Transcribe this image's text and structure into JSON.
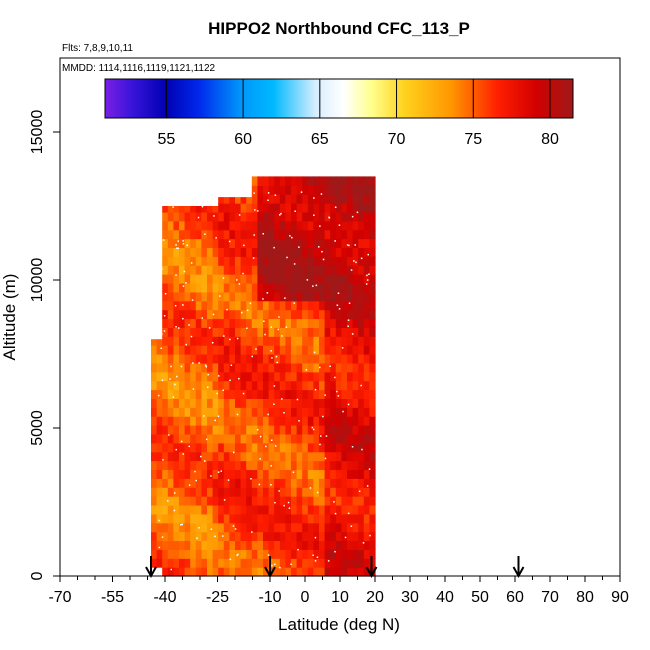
{
  "chart_data": {
    "type": "heatmap",
    "title": "HIPPO2 Northbound CFC_113_P",
    "flights_note": "Flts: 7,8,9,10,11",
    "dates_note": "MMDD: 1114,1116,1119,1121,1122",
    "xlabel": "Latitude (deg N)",
    "ylabel": "Altitude (m)",
    "xlim": [
      -70,
      90
    ],
    "ylim": [
      0,
      17500
    ],
    "x_ticks": [
      -70,
      -55,
      -40,
      -25,
      -10,
      0,
      10,
      20,
      30,
      40,
      50,
      60,
      70,
      80,
      90
    ],
    "y_ticks": [
      0,
      5000,
      10000,
      15000
    ],
    "colorbar": {
      "min": 51,
      "max": 81.5,
      "ticks": [
        55,
        60,
        65,
        70,
        75,
        80
      ],
      "placement": "top-inside"
    },
    "flight_markers_lat": [
      -44,
      -10,
      19,
      61
    ],
    "profile_extent": {
      "lat_range": [
        -44,
        20
      ],
      "alt_range": [
        0,
        13500
      ]
    },
    "approx_values": {
      "south_of_minus_25": 75,
      "minus_25_to_5": 76,
      "north_of_5": 78,
      "upper_troposphere_north": 80
    },
    "colors": {
      "scale_low": "#7a1fe8",
      "scale_mid": "#ffffff",
      "scale_high": "#a01818"
    }
  }
}
